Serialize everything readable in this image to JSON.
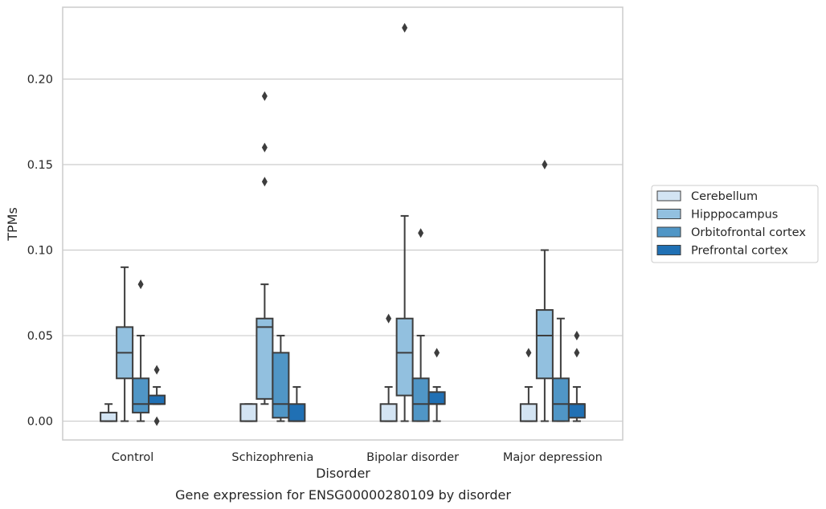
{
  "caption": "Gene expression for ENSG00000280109 by disorder",
  "chart_data": {
    "type": "box",
    "xlabel": "Disorder",
    "ylabel": "TPMs",
    "ylim": [
      -0.011,
      0.242
    ],
    "yticks": [
      0.0,
      0.05,
      0.1,
      0.15,
      0.2
    ],
    "ytick_labels": [
      "0.00",
      "0.05",
      "0.10",
      "0.15",
      "0.20"
    ],
    "grid": "horizontal",
    "legend_position": "right",
    "categories": [
      "Control",
      "Schizophrenia",
      "Bipolar disorder",
      "Major depression"
    ],
    "series": [
      {
        "name": "Cerebellum",
        "color": "#d3e4f3",
        "boxes": [
          {
            "category": "Control",
            "whislo": 0.0,
            "q1": 0.0,
            "med": 0.0,
            "q3": 0.005,
            "whishi": 0.01,
            "fliers": []
          },
          {
            "category": "Schizophrenia",
            "whislo": 0.0,
            "q1": 0.0,
            "med": 0.0,
            "q3": 0.01,
            "whishi": 0.01,
            "fliers": []
          },
          {
            "category": "Bipolar disorder",
            "whislo": 0.0,
            "q1": 0.0,
            "med": 0.0,
            "q3": 0.01,
            "whishi": 0.02,
            "fliers": [
              0.06
            ]
          },
          {
            "category": "Major depression",
            "whislo": 0.0,
            "q1": 0.0,
            "med": 0.0,
            "q3": 0.01,
            "whishi": 0.02,
            "fliers": [
              0.04
            ]
          }
        ]
      },
      {
        "name": "Hipppocampus",
        "color": "#92c0df",
        "boxes": [
          {
            "category": "Control",
            "whislo": 0.0,
            "q1": 0.025,
            "med": 0.04,
            "q3": 0.055,
            "whishi": 0.09,
            "fliers": []
          },
          {
            "category": "Schizophrenia",
            "whislo": 0.01,
            "q1": 0.013,
            "med": 0.055,
            "q3": 0.06,
            "whishi": 0.08,
            "fliers": [
              0.14,
              0.16,
              0.19
            ]
          },
          {
            "category": "Bipolar disorder",
            "whislo": 0.0,
            "q1": 0.015,
            "med": 0.04,
            "q3": 0.06,
            "whishi": 0.12,
            "fliers": [
              0.23
            ]
          },
          {
            "category": "Major depression",
            "whislo": 0.0,
            "q1": 0.025,
            "med": 0.05,
            "q3": 0.065,
            "whishi": 0.1,
            "fliers": [
              0.15
            ]
          }
        ]
      },
      {
        "name": "Orbitofrontal cortex",
        "color": "#5096c6",
        "boxes": [
          {
            "category": "Control",
            "whislo": 0.0,
            "q1": 0.005,
            "med": 0.01,
            "q3": 0.025,
            "whishi": 0.05,
            "fliers": [
              0.08
            ]
          },
          {
            "category": "Schizophrenia",
            "whislo": 0.0,
            "q1": 0.002,
            "med": 0.01,
            "q3": 0.04,
            "whishi": 0.05,
            "fliers": []
          },
          {
            "category": "Bipolar disorder",
            "whislo": 0.0,
            "q1": 0.0,
            "med": 0.01,
            "q3": 0.025,
            "whishi": 0.05,
            "fliers": [
              0.11
            ]
          },
          {
            "category": "Major depression",
            "whislo": 0.0,
            "q1": 0.0,
            "med": 0.01,
            "q3": 0.025,
            "whishi": 0.06,
            "fliers": []
          }
        ]
      },
      {
        "name": "Prefrontal cortex",
        "color": "#2070b4",
        "boxes": [
          {
            "category": "Control",
            "whislo": 0.01,
            "q1": 0.01,
            "med": 0.01,
            "q3": 0.015,
            "whishi": 0.02,
            "fliers": [
              0.0,
              0.03
            ]
          },
          {
            "category": "Schizophrenia",
            "whislo": 0.0,
            "q1": 0.0,
            "med": 0.0,
            "q3": 0.01,
            "whishi": 0.02,
            "fliers": []
          },
          {
            "category": "Bipolar disorder",
            "whislo": 0.0,
            "q1": 0.01,
            "med": 0.01,
            "q3": 0.017,
            "whishi": 0.02,
            "fliers": [
              0.04
            ]
          },
          {
            "category": "Major depression",
            "whislo": 0.0,
            "q1": 0.002,
            "med": 0.01,
            "q3": 0.01,
            "whishi": 0.02,
            "fliers": [
              0.04,
              0.05
            ]
          }
        ]
      }
    ]
  }
}
